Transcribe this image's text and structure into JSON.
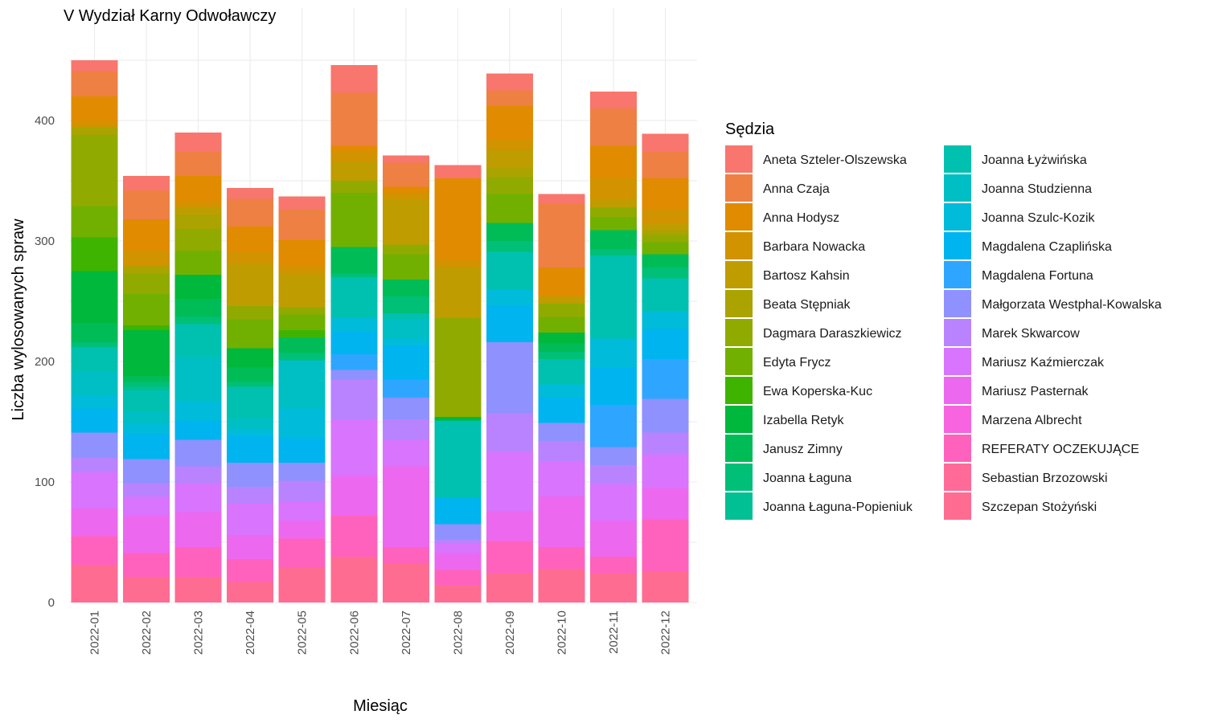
{
  "chart_data": {
    "type": "bar",
    "stacked": true,
    "title": "V Wydział Karny Odwoławczy",
    "xlabel": "Miesiąc",
    "ylabel": "Liczba wylosowanych spraw",
    "ylim": [
      0,
      470
    ],
    "yticks": [
      0,
      100,
      200,
      300,
      400
    ],
    "grid": true,
    "legend_title": "Sędzia",
    "legend_position": "right",
    "categories": [
      "2022-01",
      "2022-02",
      "2022-03",
      "2022-04",
      "2022-05",
      "2022-06",
      "2022-07",
      "2022-08",
      "2022-09",
      "2022-10",
      "2022-11",
      "2022-12"
    ],
    "series": [
      {
        "name": "Aneta Szteler-Olszewska",
        "color": "#F8766D",
        "values": [
          9,
          12,
          16,
          9,
          11,
          23,
          6,
          11,
          14,
          8,
          14,
          15
        ]
      },
      {
        "name": "Anna Czaja",
        "color": "#EE8044",
        "values": [
          21,
          24,
          20,
          23,
          25,
          44,
          20,
          0,
          13,
          53,
          31,
          22
        ]
      },
      {
        "name": "Anna Hodysz",
        "color": "#E08B00",
        "values": [
          21,
          26,
          22,
          21,
          22,
          5,
          5,
          68,
          28,
          24,
          27,
          26
        ]
      },
      {
        "name": "Barbara Nowacka",
        "color": "#D19300",
        "values": [
          5,
          13,
          4,
          10,
          6,
          8,
          6,
          6,
          8,
          0,
          18,
          12
        ]
      },
      {
        "name": "Bartosz Kahsin",
        "color": "#BF9C00",
        "values": [
          0,
          0,
          6,
          35,
          28,
          16,
          37,
          42,
          15,
          6,
          6,
          5
        ]
      },
      {
        "name": "Beata Stępniak",
        "color": "#AAA300",
        "values": [
          6,
          6,
          12,
          0,
          0,
          0,
          0,
          0,
          8,
          0,
          0,
          4
        ]
      },
      {
        "name": "Dagmara Daraszkiewicz",
        "color": "#91AA00",
        "values": [
          59,
          17,
          18,
          11,
          6,
          10,
          8,
          82,
          14,
          11,
          8,
          6
        ]
      },
      {
        "name": "Edyta Frycz",
        "color": "#72B000",
        "values": [
          26,
          26,
          20,
          24,
          13,
          45,
          21,
          0,
          24,
          13,
          11,
          10
        ]
      },
      {
        "name": "Ewa Koperska-Kuc",
        "color": "#3EB400",
        "values": [
          28,
          4,
          0,
          0,
          6,
          0,
          0,
          0,
          0,
          0,
          0,
          0
        ]
      },
      {
        "name": "Izabella Retyk",
        "color": "#00B83B",
        "values": [
          43,
          38,
          20,
          16,
          0,
          0,
          0,
          3,
          0,
          9,
          0,
          0
        ]
      },
      {
        "name": "Janusz Zimny",
        "color": "#00BC57",
        "values": [
          16,
          5,
          15,
          12,
          13,
          22,
          14,
          0,
          15,
          7,
          16,
          11
        ]
      },
      {
        "name": "Joanna Łaguna",
        "color": "#00BF77",
        "values": [
          4,
          4,
          6,
          4,
          6,
          3,
          14,
          0,
          9,
          6,
          5,
          9
        ]
      },
      {
        "name": "Joanna Łaguna-Popieniuk",
        "color": "#00C094",
        "values": [
          0,
          3,
          0,
          0,
          0,
          0,
          0,
          0,
          0,
          0,
          0,
          0
        ]
      },
      {
        "name": "Joanna Łyżwińska",
        "color": "#00C1AF",
        "values": [
          20,
          18,
          27,
          26,
          0,
          34,
          5,
          64,
          31,
          21,
          69,
          27
        ]
      },
      {
        "name": "Joanna Studzienna",
        "color": "#00BFC4",
        "values": [
          20,
          10,
          37,
          9,
          40,
          0,
          16,
          0,
          0,
          0,
          0,
          0
        ]
      },
      {
        "name": "Joanna Szulc-Kozik",
        "color": "#00BBDA",
        "values": [
          11,
          8,
          16,
          6,
          24,
          11,
          6,
          0,
          13,
          11,
          24,
          15
        ]
      },
      {
        "name": "Magdalena Czaplińska",
        "color": "#00B4EF",
        "values": [
          20,
          21,
          16,
          22,
          21,
          19,
          28,
          22,
          31,
          21,
          31,
          25
        ]
      },
      {
        "name": "Magdalena Fortuna",
        "color": "#2EA6FF",
        "values": [
          0,
          0,
          0,
          0,
          0,
          13,
          15,
          0,
          0,
          0,
          35,
          33
        ]
      },
      {
        "name": "Małgorzata Westphal-Kowalska",
        "color": "#8F91FF",
        "values": [
          21,
          20,
          22,
          20,
          15,
          8,
          18,
          13,
          59,
          15,
          15,
          28
        ]
      },
      {
        "name": "Marek Skwarcow",
        "color": "#B983FF",
        "values": [
          12,
          11,
          14,
          14,
          17,
          33,
          17,
          3,
          32,
          17,
          16,
          18
        ]
      },
      {
        "name": "Mariusz Kaźmierczak",
        "color": "#D874FD",
        "values": [
          30,
          16,
          24,
          26,
          16,
          47,
          22,
          8,
          49,
          29,
          30,
          28
        ]
      },
      {
        "name": "Mariusz Pasternak",
        "color": "#EC69EF",
        "values": [
          23,
          31,
          29,
          20,
          15,
          33,
          67,
          14,
          25,
          42,
          30,
          26
        ]
      },
      {
        "name": "Marzena Albrecht",
        "color": "#F863DF",
        "values": [
          0,
          0,
          0,
          0,
          0,
          0,
          0,
          0,
          0,
          0,
          0,
          0
        ]
      },
      {
        "name": "REFERATY OCZEKUJĄCE",
        "color": "#FF62BC",
        "values": [
          24,
          20,
          25,
          19,
          24,
          34,
          14,
          13,
          27,
          18,
          14,
          43
        ]
      },
      {
        "name": "Sebastian Brzozowski",
        "color": "#FF6A98",
        "values": [
          0,
          0,
          0,
          0,
          0,
          0,
          0,
          0,
          0,
          0,
          0,
          0
        ]
      },
      {
        "name": "Szczepan Stożyński",
        "color": "#FF6C91",
        "values": [
          31,
          21,
          21,
          17,
          29,
          38,
          32,
          14,
          24,
          28,
          24,
          26
        ]
      }
    ]
  }
}
